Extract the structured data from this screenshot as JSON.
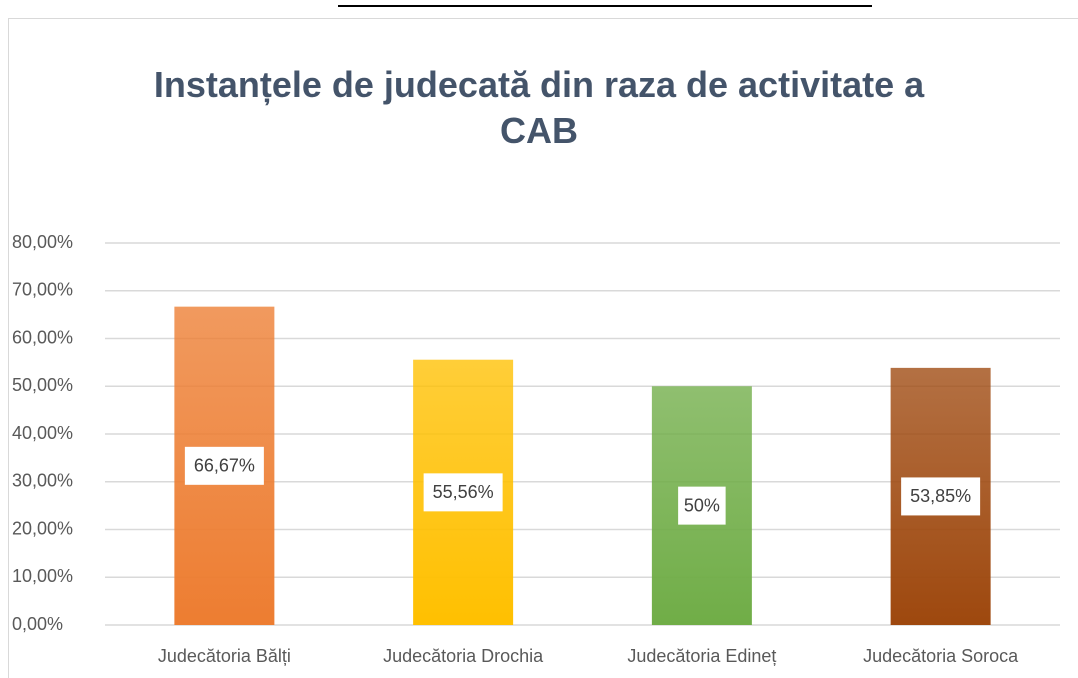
{
  "chart_data": {
    "type": "bar",
    "title": "Instanțele de judecată din raza de activitate a CAB",
    "categories": [
      "Judecătoria Bălți",
      "Judecătoria Drochia",
      "Judecătoria Edineț",
      "Judecătoria Soroca"
    ],
    "values": [
      66.67,
      55.56,
      50,
      53.85
    ],
    "value_labels": [
      "66,67%",
      "55,56%",
      "50%",
      "53,85%"
    ],
    "colors": [
      "#ed7d31",
      "#ffc000",
      "#70ad47",
      "#9e480e"
    ],
    "ylim": [
      0,
      80
    ],
    "yticks": [
      {
        "value": 0,
        "label": "0,00%"
      },
      {
        "value": 10,
        "label": "10,00%"
      },
      {
        "value": 20,
        "label": "20,00%"
      },
      {
        "value": 30,
        "label": "30,00%"
      },
      {
        "value": 40,
        "label": "40,00%"
      },
      {
        "value": 50,
        "label": "50,00%"
      },
      {
        "value": 60,
        "label": "60,00%"
      },
      {
        "value": 70,
        "label": "70,00%"
      },
      {
        "value": 80,
        "label": "80,00%"
      }
    ],
    "grid": true
  }
}
